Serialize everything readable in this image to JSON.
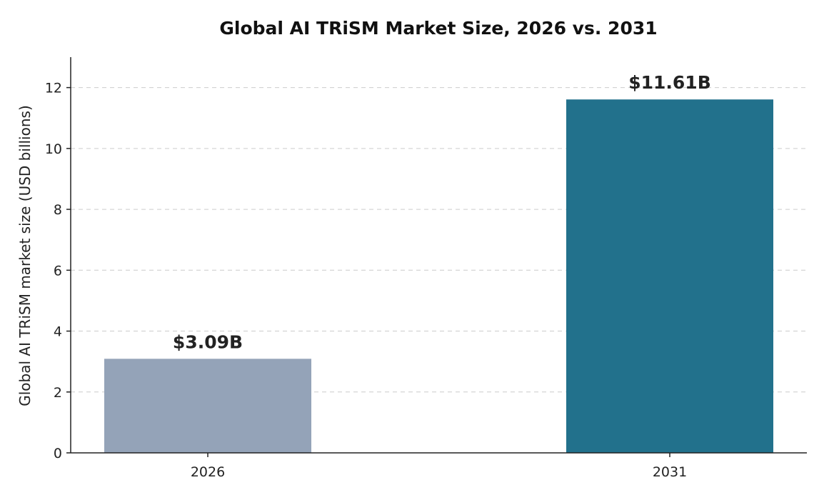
{
  "chart_data": {
    "type": "bar",
    "title": "Global AI TRiSM Market Size, 2026 vs. 2031",
    "xlabel": "",
    "ylabel": "Global AI TRiSM market size (USD billions)",
    "categories": [
      "2026",
      "2031"
    ],
    "values": [
      3.09,
      11.61
    ],
    "data_labels": [
      "$3.09B",
      "$11.61B"
    ],
    "colors": [
      "#94a3b8",
      "#22718c"
    ],
    "ylim": [
      0,
      13
    ],
    "yticks": [
      0,
      2,
      4,
      6,
      8,
      10,
      12
    ],
    "grid": "horizontal-dashed",
    "legend": "none"
  }
}
